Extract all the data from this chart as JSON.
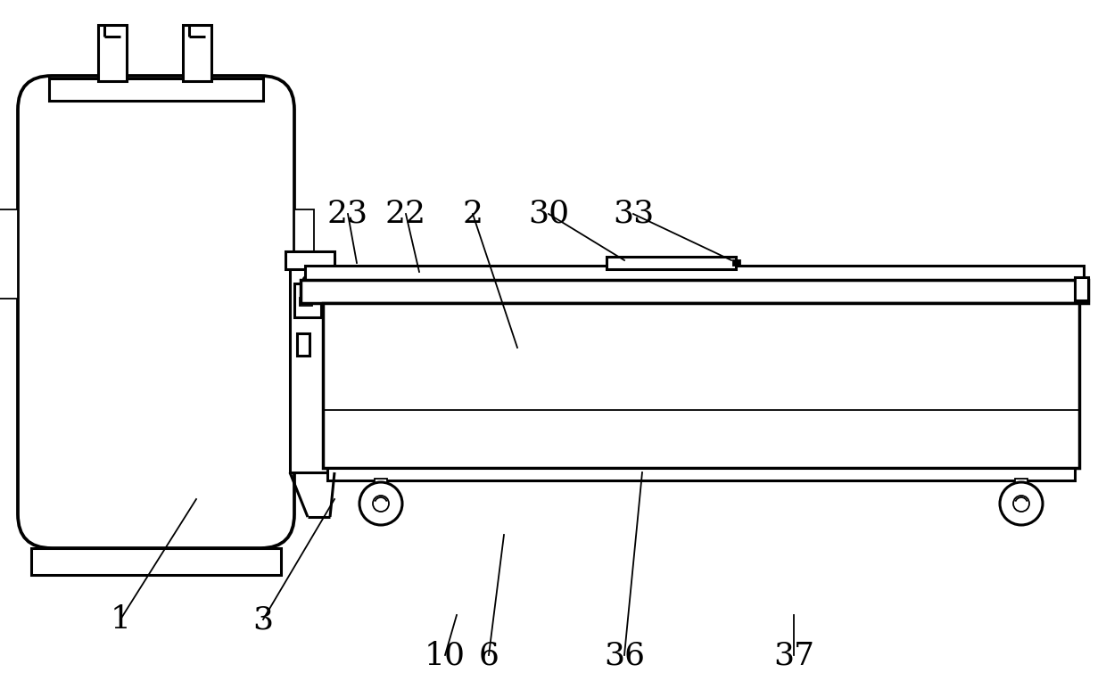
{
  "bg_color": "#ffffff",
  "line_color": "#000000",
  "lw": 2.2,
  "tlw": 1.3,
  "fig_width": 12.4,
  "fig_height": 7.73,
  "font_size": 26
}
